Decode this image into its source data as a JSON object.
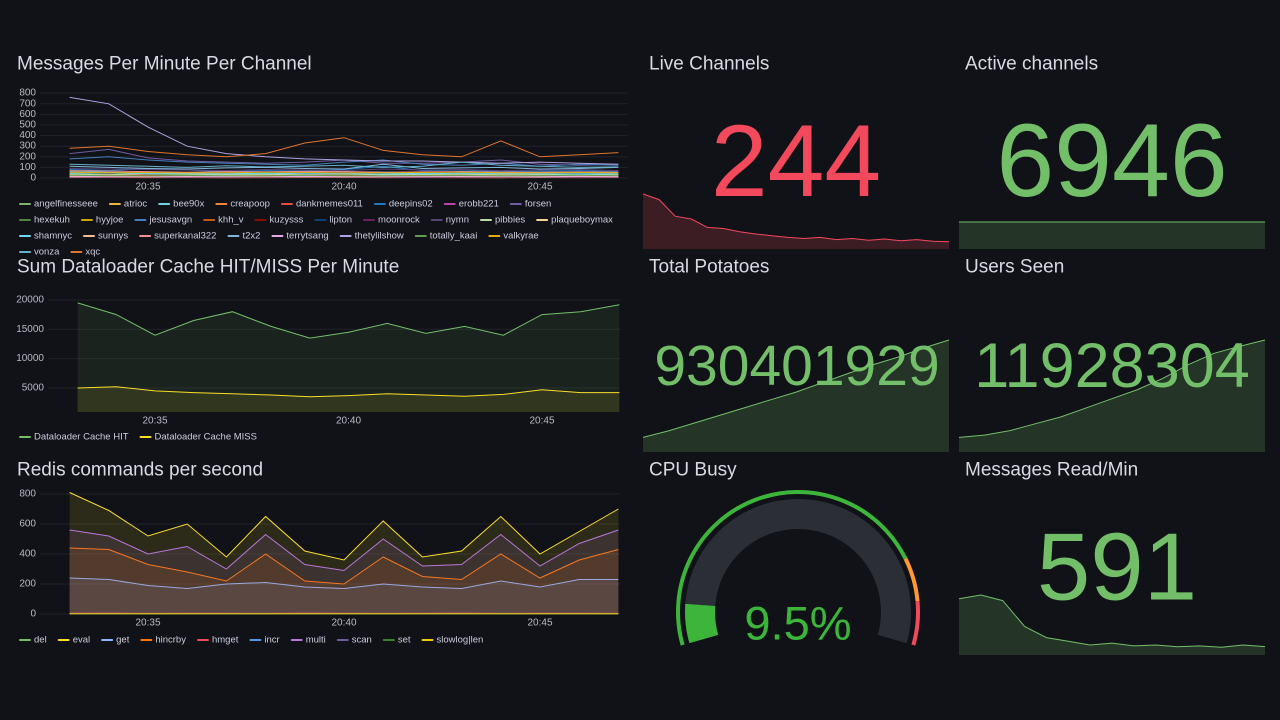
{
  "chart_data": [
    {
      "type": "line",
      "title": "Messages Per Minute Per Channel",
      "categories": [
        null,
        null,
        "20:35",
        null,
        null,
        null,
        null,
        "20:40",
        null,
        null,
        null,
        null,
        "20:45",
        null,
        null
      ],
      "ylim": [
        0,
        830
      ],
      "yticks": [
        0,
        100,
        200,
        300,
        400,
        500,
        600,
        700,
        800
      ],
      "grid": true,
      "fill": false,
      "series": [
        {
          "name": "angelfinesseee",
          "color": "#7EB26D",
          "values": [
            20,
            25,
            18,
            22,
            20,
            15,
            18,
            20,
            16,
            14,
            18,
            15,
            12,
            14,
            15
          ]
        },
        {
          "name": "atrioc",
          "color": "#EAB839",
          "values": [
            10,
            12,
            8,
            10,
            9,
            11,
            10,
            8,
            9,
            10,
            12,
            9,
            8,
            10,
            9
          ]
        },
        {
          "name": "bee90x",
          "color": "#6ED0E0",
          "values": [
            60,
            55,
            50,
            45,
            50,
            40,
            55,
            60,
            50,
            45,
            60,
            55,
            50,
            45,
            50
          ]
        },
        {
          "name": "creapoop",
          "color": "#EF843C",
          "values": [
            5,
            6,
            4,
            5,
            3,
            4,
            5,
            6,
            4,
            5,
            4,
            3,
            5,
            4,
            5
          ]
        },
        {
          "name": "dankmemes011",
          "color": "#E24D42",
          "values": [
            30,
            35,
            28,
            25,
            30,
            32,
            28,
            26,
            30,
            25,
            28,
            30,
            27,
            25,
            28
          ]
        },
        {
          "name": "deepins02",
          "color": "#1F78C1",
          "values": [
            80,
            70,
            90,
            75,
            60,
            70,
            65,
            80,
            110,
            70,
            75,
            60,
            65,
            70,
            60
          ]
        },
        {
          "name": "erobb221",
          "color": "#BA43A9",
          "values": [
            15,
            18,
            12,
            14,
            16,
            12,
            15,
            13,
            14,
            12,
            16,
            15,
            13,
            12,
            14
          ]
        },
        {
          "name": "forsen",
          "color": "#705DA0",
          "values": [
            230,
            270,
            190,
            160,
            150,
            140,
            150,
            170,
            140,
            140,
            150,
            170,
            130,
            120,
            130
          ]
        },
        {
          "name": "hexekuh",
          "color": "#508642",
          "values": [
            40,
            45,
            35,
            30,
            35,
            40,
            38,
            35,
            30,
            32,
            36,
            34,
            30,
            28,
            30
          ]
        },
        {
          "name": "hyyjoe",
          "color": "#CCA300",
          "values": [
            8,
            10,
            7,
            9,
            8,
            6,
            7,
            9,
            8,
            7,
            6,
            8,
            7,
            9,
            8
          ]
        },
        {
          "name": "jesusavgn",
          "color": "#447EBC",
          "values": [
            180,
            200,
            170,
            150,
            140,
            130,
            120,
            150,
            170,
            130,
            120,
            140,
            110,
            130,
            120
          ]
        },
        {
          "name": "khh_v",
          "color": "#C15C17",
          "values": [
            25,
            28,
            22,
            20,
            24,
            22,
            26,
            24,
            20,
            22,
            25,
            23,
            21,
            22,
            20
          ]
        },
        {
          "name": "kuzysss",
          "color": "#890F02",
          "values": [
            12,
            14,
            10,
            11,
            12,
            10,
            13,
            11,
            12,
            10,
            11,
            12,
            10,
            11,
            10
          ]
        },
        {
          "name": "lipton",
          "color": "#0A437C",
          "values": [
            50,
            45,
            55,
            48,
            52,
            50,
            47,
            55,
            60,
            50,
            48,
            52,
            45,
            50,
            48
          ]
        },
        {
          "name": "moonrock",
          "color": "#6D1F62",
          "values": [
            6,
            7,
            5,
            6,
            5,
            6,
            7,
            5,
            6,
            5,
            6,
            5,
            6,
            5,
            6
          ]
        },
        {
          "name": "nymn",
          "color": "#584477",
          "values": [
            90,
            85,
            80,
            75,
            70,
            80,
            75,
            70,
            85,
            75,
            80,
            70,
            75,
            80,
            70
          ]
        },
        {
          "name": "pibbies",
          "color": "#B7DBAB",
          "values": [
            35,
            30,
            40,
            35,
            30,
            32,
            35,
            38,
            30,
            33,
            35,
            30,
            32,
            35,
            30
          ]
        },
        {
          "name": "plaqueboymax",
          "color": "#F4D598",
          "values": [
            20,
            22,
            18,
            20,
            25,
            22,
            20,
            18,
            22,
            20,
            24,
            22,
            20,
            18,
            22
          ]
        },
        {
          "name": "shamnyc",
          "color": "#70DBED",
          "values": [
            45,
            50,
            40,
            42,
            38,
            45,
            40,
            42,
            38,
            40,
            45,
            42,
            40,
            38,
            40
          ]
        },
        {
          "name": "sunnys",
          "color": "#F9BA8F",
          "values": [
            10,
            12,
            9,
            11,
            10,
            12,
            11,
            9,
            10,
            12,
            11,
            10,
            9,
            11,
            10
          ]
        },
        {
          "name": "superkanal322",
          "color": "#F29191",
          "values": [
            70,
            65,
            60,
            55,
            60,
            58,
            62,
            60,
            55,
            58,
            60,
            56,
            54,
            58,
            55
          ]
        },
        {
          "name": "t2x2",
          "color": "#82B5D8",
          "values": [
            110,
            100,
            90,
            85,
            95,
            100,
            90,
            85,
            130,
            90,
            95,
            100,
            85,
            90,
            100
          ]
        },
        {
          "name": "terrytsang",
          "color": "#E5A8E2",
          "values": [
            15,
            14,
            16,
            12,
            14,
            15,
            13,
            16,
            14,
            12,
            15,
            14,
            13,
            15,
            14
          ]
        },
        {
          "name": "thetylilshow",
          "color": "#AEA2E0",
          "values": [
            760,
            700,
            480,
            300,
            230,
            200,
            180,
            170,
            160,
            160,
            150,
            140,
            150,
            140,
            130
          ]
        },
        {
          "name": "totally_kaai",
          "color": "#629E51",
          "values": [
            25,
            22,
            20,
            24,
            22,
            20,
            25,
            22,
            20,
            22,
            24,
            20,
            22,
            25,
            22
          ]
        },
        {
          "name": "valkyrae",
          "color": "#E5AC0E",
          "values": [
            55,
            50,
            52,
            48,
            50,
            55,
            52,
            48,
            50,
            52,
            55,
            50,
            48,
            52,
            50
          ]
        },
        {
          "name": "vonza",
          "color": "#64B0C8",
          "values": [
            130,
            120,
            110,
            100,
            115,
            105,
            110,
            120,
            100,
            110,
            150,
            120,
            110,
            100,
            105
          ]
        },
        {
          "name": "xqc",
          "color": "#E0752D",
          "values": [
            280,
            300,
            250,
            220,
            200,
            230,
            330,
            380,
            260,
            220,
            200,
            350,
            200,
            220,
            240
          ]
        }
      ]
    },
    {
      "type": "line",
      "title": "Sum Dataloader Cache HIT/MISS Per Minute",
      "categories": [
        null,
        null,
        "20:35",
        null,
        null,
        null,
        null,
        "20:40",
        null,
        null,
        null,
        null,
        "20:45",
        null,
        null
      ],
      "ylim": [
        900,
        21700
      ],
      "yticks": [
        5000,
        10000,
        15000,
        20000
      ],
      "grid": true,
      "fill": true,
      "series": [
        {
          "name": "Dataloader Cache HIT",
          "color": "#73bf69",
          "values": [
            19500,
            17500,
            14000,
            16500,
            18000,
            15500,
            13500,
            14500,
            16000,
            14300,
            15500,
            14000,
            17500,
            18000,
            19200
          ]
        },
        {
          "name": "Dataloader Cache MISS",
          "color": "#fade2a",
          "values": [
            5000,
            5200,
            4500,
            4200,
            4000,
            3800,
            3500,
            3700,
            4000,
            3800,
            3600,
            3900,
            4700,
            4200,
            4200
          ]
        }
      ]
    },
    {
      "type": "line",
      "title": "Redis commands per second",
      "categories": [
        null,
        null,
        "20:35",
        null,
        null,
        null,
        null,
        "20:40",
        null,
        null,
        null,
        null,
        "20:45",
        null,
        null
      ],
      "ylim": [
        0,
        827
      ],
      "yticks": [
        0,
        200,
        400,
        600,
        800
      ],
      "grid": true,
      "fill": true,
      "series": [
        {
          "name": "del",
          "color": "#73bf69",
          "values": [
            2,
            2,
            1,
            2,
            2,
            1,
            2,
            2,
            1,
            2,
            2,
            1,
            2,
            2,
            1
          ]
        },
        {
          "name": "eval",
          "color": "#fade2a",
          "values": [
            810,
            690,
            520,
            600,
            380,
            650,
            420,
            360,
            620,
            380,
            420,
            650,
            400,
            550,
            700
          ]
        },
        {
          "name": "get",
          "color": "#8ab8ff",
          "values": [
            240,
            230,
            190,
            170,
            200,
            210,
            180,
            170,
            200,
            180,
            170,
            220,
            180,
            230,
            230
          ]
        },
        {
          "name": "hincrby",
          "color": "#ff780a",
          "values": [
            440,
            430,
            330,
            280,
            220,
            400,
            220,
            200,
            380,
            250,
            230,
            400,
            240,
            360,
            430
          ]
        },
        {
          "name": "hmget",
          "color": "#f2495c",
          "values": [
            5,
            6,
            4,
            5,
            5,
            4,
            6,
            5,
            4,
            5,
            6,
            4,
            5,
            5,
            4
          ]
        },
        {
          "name": "incr",
          "color": "#5794f2",
          "values": [
            1,
            1,
            1,
            1,
            1,
            1,
            1,
            1,
            1,
            1,
            1,
            1,
            1,
            1,
            1
          ]
        },
        {
          "name": "multi",
          "color": "#b877d9",
          "values": [
            560,
            520,
            400,
            450,
            300,
            530,
            330,
            290,
            500,
            320,
            330,
            530,
            320,
            470,
            560
          ]
        },
        {
          "name": "scan",
          "color": "#705da0",
          "values": [
            3,
            3,
            2,
            3,
            3,
            2,
            3,
            3,
            2,
            3,
            3,
            2,
            3,
            3,
            2
          ]
        },
        {
          "name": "set",
          "color": "#37872d",
          "values": [
            1,
            1,
            1,
            1,
            1,
            1,
            1,
            1,
            1,
            1,
            1,
            1,
            1,
            1,
            1
          ]
        },
        {
          "name": "slowlog|len",
          "color": "#f2cc0c",
          "values": [
            2,
            2,
            2,
            2,
            2,
            2,
            2,
            2,
            2,
            2,
            2,
            2,
            2,
            2,
            2
          ]
        }
      ]
    },
    {
      "type": "stat",
      "title": "Live Channels",
      "value": 244,
      "color": "#f2495c",
      "sparkline": [
        330,
        320,
        290,
        285,
        270,
        268,
        262,
        258,
        255,
        252,
        250,
        252,
        248,
        250,
        247,
        249,
        246,
        248,
        245,
        244
      ]
    },
    {
      "type": "stat",
      "title": "Active channels",
      "value": 6946,
      "color": "#73bf69",
      "sparkline": [
        6946,
        6946,
        6946,
        6946,
        6946,
        6946,
        6946,
        6946,
        6946,
        6946,
        6946,
        6946
      ]
    },
    {
      "type": "stat",
      "title": "Total Potatoes",
      "value": 930401929,
      "color": "#73bf69",
      "sparkline": [
        929650000,
        929700000,
        929760000,
        929820000,
        929880000,
        929940000,
        930000000,
        930070000,
        930140000,
        930210000,
        930270000,
        930340000,
        930401929
      ]
    },
    {
      "type": "stat",
      "title": "Users Seen",
      "value": 11928304,
      "color": "#73bf69",
      "sparkline": [
        11500000,
        11510000,
        11530000,
        11560000,
        11590000,
        11630000,
        11670000,
        11710000,
        11760000,
        11820000,
        11870000,
        11900000,
        11928304
      ]
    },
    {
      "type": "gauge",
      "title": "CPU Busy",
      "value": 9.5,
      "value_label": "9.5%",
      "range": [
        0,
        100
      ],
      "color": "#3cb53a",
      "thresholds": [
        {
          "value": 80,
          "color": "#ff9830"
        },
        {
          "value": 90,
          "color": "#f2495c"
        }
      ]
    },
    {
      "type": "stat",
      "title": "Messages Read/Min",
      "value": 591,
      "color": "#73bf69",
      "sparkline": [
        850,
        870,
        840,
        700,
        640,
        620,
        600,
        610,
        595,
        600,
        590,
        595,
        588,
        600,
        591
      ]
    }
  ]
}
